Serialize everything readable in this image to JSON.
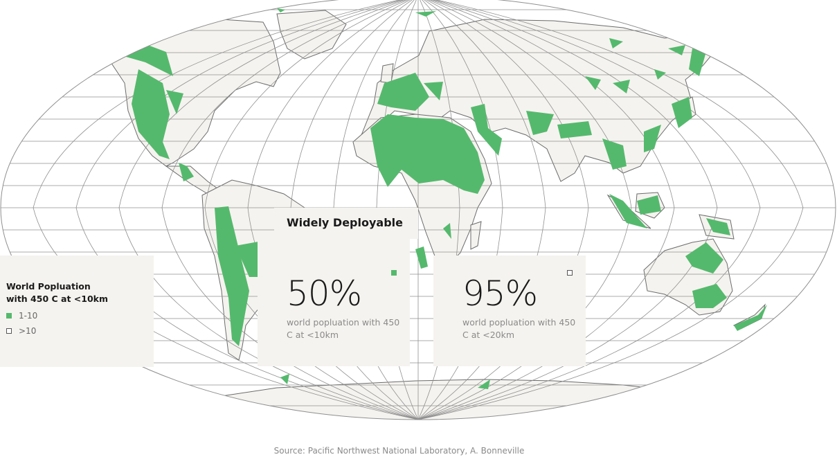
{
  "title": "Widely Deployable",
  "legend": {
    "title": "World Popluation\nwith 450 C at <10km",
    "items": [
      {
        "label": "1-10",
        "style": "filled",
        "color": "#55b96d"
      },
      {
        "label": ">10",
        "style": "outline",
        "color": "#555555"
      }
    ]
  },
  "stats": [
    {
      "value": "50%",
      "description": "world popluation with 450 C at <10km",
      "marker": "filled"
    },
    {
      "value": "95%",
      "description": "world popluation with 450 C at <20km",
      "marker": "outline"
    }
  ],
  "source": "Source: Pacific Northwest National Laboratory, A. Bonneville",
  "colors": {
    "land": "#f5f3ef",
    "highlight": "#55b96d",
    "graticule": "#8f8f8f",
    "coast": "#6b6b6b"
  }
}
